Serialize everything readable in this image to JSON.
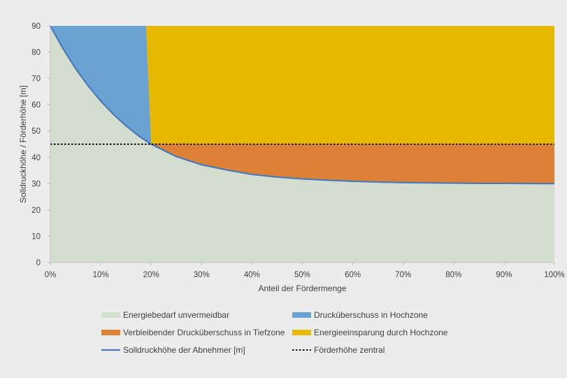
{
  "chart_data": {
    "type": "area",
    "xlabel": "Anteil der Fördermenge",
    "ylabel": "Solldruckhöhe / Förderhöhe [m]",
    "xlim": [
      0,
      100
    ],
    "ylim": [
      0,
      90
    ],
    "x_ticks": [
      "0%",
      "10%",
      "20%",
      "30%",
      "40%",
      "50%",
      "60%",
      "70%",
      "80%",
      "90%",
      "100%"
    ],
    "y_ticks": [
      "0",
      "10",
      "20",
      "30",
      "40",
      "50",
      "60",
      "70",
      "80",
      "90"
    ],
    "x_unit": "%",
    "grid": false,
    "legend_position": "bottom",
    "central_head": 45,
    "zone_boundary_x": 20,
    "zone_boundary_x_top": 19,
    "demand_curve": {
      "name": "Solldruckhöhe der Abnehmer [m]",
      "color": "#4a78b8",
      "x": [
        0,
        2.5,
        5,
        7.5,
        10,
        12.5,
        15,
        17.5,
        20,
        25,
        30,
        35,
        40,
        45,
        50,
        55,
        60,
        65,
        70,
        75,
        80,
        85,
        90,
        95,
        100
      ],
      "y": [
        90,
        81.4,
        73.8,
        67.2,
        61.4,
        56.4,
        52.0,
        48.2,
        45.0,
        40.3,
        37.2,
        35.2,
        33.5,
        32.5,
        31.8,
        31.3,
        30.9,
        30.6,
        30.4,
        30.3,
        30.2,
        30.1,
        30.1,
        30.05,
        30.0
      ]
    },
    "series": [
      {
        "name": "Energiebedarf unvermeidbar",
        "color": "#d4dece",
        "kind": "area"
      },
      {
        "name": "Drucküberschuss in Hochzone",
        "color": "#6aa2d3",
        "kind": "area"
      },
      {
        "name": "Verbleibender Drucküberschuss in Tiefzone",
        "color": "#dd8137",
        "kind": "area"
      },
      {
        "name": "Energieeinsparung durch Hochzone",
        "color": "#e6b800",
        "kind": "area"
      },
      {
        "name": "Solldruckhöhe der Abnehmer [m]",
        "color": "#4a78b8",
        "kind": "line"
      },
      {
        "name": "Förderhöhe zentral",
        "color": "#111111",
        "kind": "dotted"
      }
    ]
  }
}
